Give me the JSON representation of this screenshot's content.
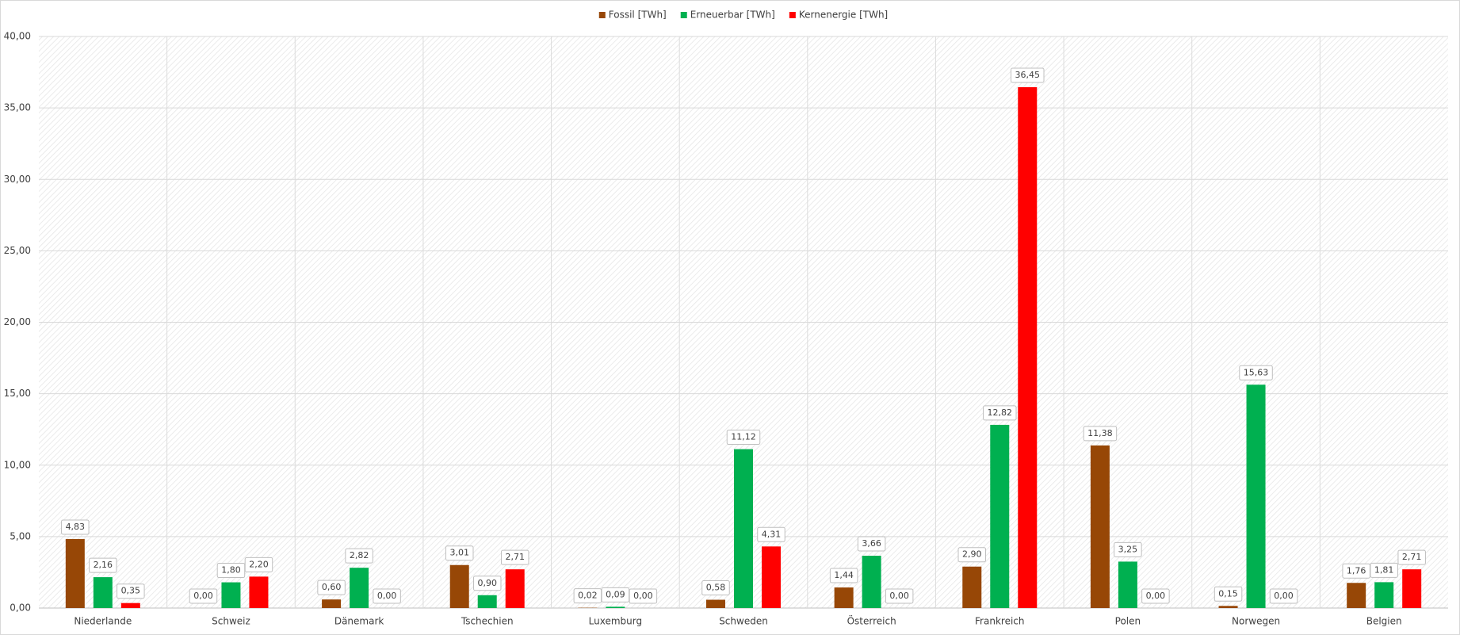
{
  "chart_data": {
    "type": "bar",
    "categories": [
      "Niederlande",
      "Schweiz",
      "Dänemark",
      "Tschechien",
      "Luxemburg",
      "Schweden",
      "Österreich",
      "Frankreich",
      "Polen",
      "Norwegen",
      "Belgien"
    ],
    "series": [
      {
        "name": "Fossil [TWh]",
        "color": "#974706",
        "values": [
          4.83,
          0.0,
          0.6,
          3.01,
          0.02,
          0.58,
          1.44,
          2.9,
          11.38,
          0.15,
          1.76
        ],
        "value_labels": [
          "4,83",
          "0,00",
          "0,60",
          "3,01",
          "0,02",
          "0,58",
          "1,44",
          "2,90",
          "11,38",
          "0,15",
          "1,76"
        ]
      },
      {
        "name": "Erneuerbar [TWh]",
        "color": "#00b050",
        "values": [
          2.16,
          1.8,
          2.82,
          0.9,
          0.09,
          11.12,
          3.66,
          12.82,
          3.25,
          15.63,
          1.81
        ],
        "value_labels": [
          "2,16",
          "1,80",
          "2,82",
          "0,90",
          "0,09",
          "11,12",
          "3,66",
          "12,82",
          "3,25",
          "15,63",
          "1,81"
        ]
      },
      {
        "name": "Kernenergie [TWh]",
        "color": "#ff0000",
        "values": [
          0.35,
          2.2,
          0.0,
          2.71,
          0.0,
          4.31,
          0.0,
          36.45,
          0.0,
          0.0,
          2.71
        ],
        "value_labels": [
          "0,35",
          "2,20",
          "0,00",
          "2,71",
          "0,00",
          "4,31",
          "0,00",
          "36,45",
          "0,00",
          "0,00",
          "2,71"
        ]
      }
    ],
    "ylim": [
      0,
      40
    ],
    "yticks": [
      {
        "value": 0,
        "label": "0,00"
      },
      {
        "value": 5,
        "label": "5,00"
      },
      {
        "value": 10,
        "label": "10,00"
      },
      {
        "value": 15,
        "label": "15,00"
      },
      {
        "value": 20,
        "label": "20,00"
      },
      {
        "value": 25,
        "label": "25,00"
      },
      {
        "value": 30,
        "label": "30,00"
      },
      {
        "value": 35,
        "label": "35,00"
      },
      {
        "value": 40,
        "label": "40,00"
      }
    ],
    "grid": true,
    "legend": "top"
  }
}
